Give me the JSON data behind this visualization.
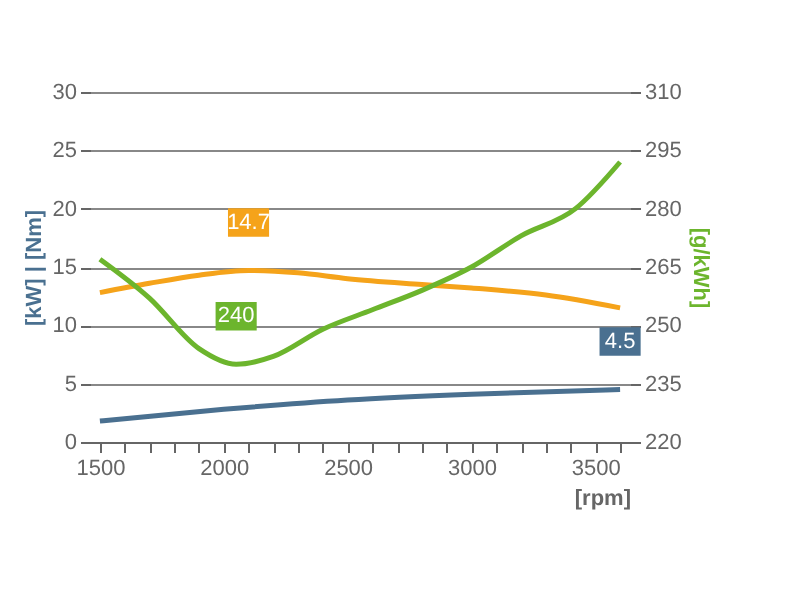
{
  "chart_data": {
    "type": "line",
    "xlabel": "[rpm]",
    "ylabel": "[kW] | [Nm]",
    "y2label": "[g/kWh]",
    "xlim": [
      1460,
      3640
    ],
    "xticks": [
      1500,
      {
        "value": 1600,
        "label": null
      },
      {
        "value": 1700,
        "label": null
      },
      {
        "value": 1800,
        "label": null
      },
      {
        "value": 1900,
        "label": null
      },
      2000,
      {
        "value": 2100,
        "label": null
      },
      {
        "value": 2200,
        "label": null
      },
      {
        "value": 2300,
        "label": null
      },
      {
        "value": 2400,
        "label": null
      },
      2500,
      {
        "value": 2600,
        "label": null
      },
      {
        "value": 2700,
        "label": null
      },
      {
        "value": 2800,
        "label": null
      },
      {
        "value": 2900,
        "label": null
      },
      3000,
      {
        "value": 3100,
        "label": null
      },
      {
        "value": 3200,
        "label": null
      },
      {
        "value": 3300,
        "label": null
      },
      {
        "value": 3400,
        "label": null
      },
      3500,
      {
        "value": 3600,
        "label": null
      }
    ],
    "ylim": [
      0,
      30
    ],
    "yticks": [
      0,
      5,
      10,
      15,
      20,
      25,
      30
    ],
    "y2lim": [
      220,
      310
    ],
    "y2ticks": [
      220,
      235,
      250,
      265,
      280,
      295,
      310
    ],
    "grid": "y",
    "marker": "none",
    "line_style": "solid",
    "series": [
      {
        "color": "#f5a31a",
        "x": [
          1500,
          1700,
          1900,
          2100,
          2300,
          2500,
          2800,
          3000,
          3300,
          3600
        ],
        "values": [
          12.8,
          13.6,
          14.3,
          14.7,
          14.5,
          14.0,
          13.5,
          13.2,
          12.6,
          11.5
        ],
        "value_labels": [
          null,
          null,
          null,
          "14.7",
          null,
          null,
          null,
          null,
          null,
          null
        ]
      },
      {
        "color": "#6cb52d",
        "axis": "y2",
        "x": [
          1500,
          1700,
          1900,
          2050,
          2200,
          2400,
          2600,
          2800,
          3000,
          3200,
          3420,
          3600
        ],
        "values": [
          267,
          257,
          244,
          240,
          242,
          249,
          254,
          259,
          265,
          273,
          280,
          292
        ],
        "value_labels": [
          null,
          null,
          null,
          "240",
          null,
          null,
          null,
          null,
          null,
          null,
          null,
          null
        ]
      },
      {
        "color": "#4a7090",
        "x": [
          1500,
          2000,
          2500,
          3000,
          3600
        ],
        "values": [
          1.8,
          2.8,
          3.6,
          4.1,
          4.5
        ],
        "value_labels": [
          null,
          null,
          null,
          null,
          "4.5"
        ]
      }
    ]
  }
}
